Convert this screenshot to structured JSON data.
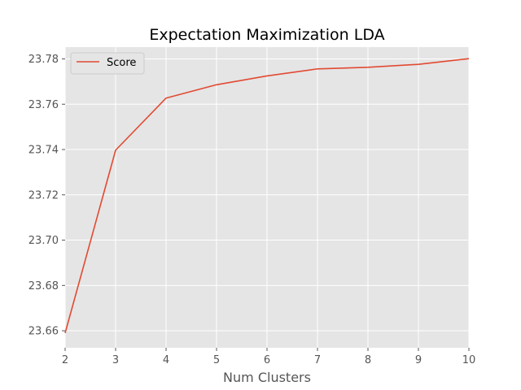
{
  "chart_data": {
    "type": "line",
    "title": "Expectation Maximization LDA",
    "xlabel": "Num Clusters",
    "ylabel": "",
    "x": [
      2,
      3,
      4,
      5,
      6,
      7,
      8,
      9,
      10
    ],
    "series": [
      {
        "name": "Score",
        "color": "#E24A33",
        "values": [
          23.659,
          23.7397,
          23.7627,
          23.7686,
          23.7725,
          23.7756,
          23.7763,
          23.7776,
          23.7801
        ]
      }
    ],
    "xlim": [
      2,
      10
    ],
    "ylim": [
      23.6525,
      23.7852
    ],
    "xticks": [
      2,
      3,
      4,
      5,
      6,
      7,
      8,
      9,
      10
    ],
    "xtick_labels": [
      "2",
      "3",
      "4",
      "5",
      "6",
      "7",
      "8",
      "9",
      "10"
    ],
    "yticks": [
      23.66,
      23.68,
      23.7,
      23.72,
      23.74,
      23.76,
      23.78
    ],
    "ytick_labels": [
      "23.66",
      "23.68",
      "23.70",
      "23.72",
      "23.74",
      "23.76",
      "23.78"
    ],
    "grid": true,
    "legend_position": "upper-left",
    "style": "ggplot",
    "background": "#E5E5E5"
  }
}
